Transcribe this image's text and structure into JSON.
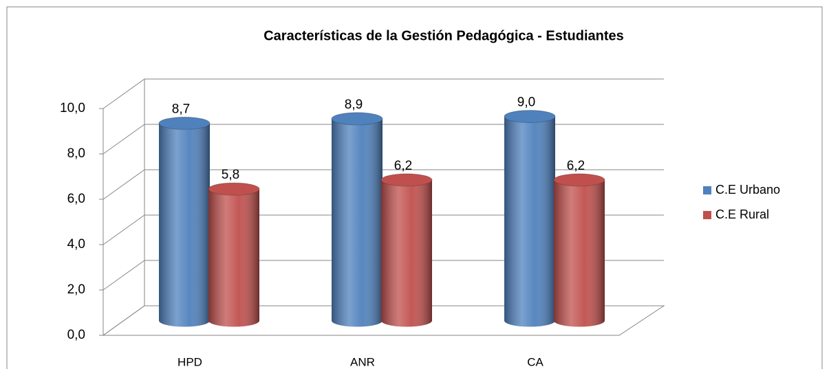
{
  "chart_data": {
    "type": "bar3d",
    "title": "Características de la Gestión Pedagógica - Estudiantes",
    "categories": [
      "HPD",
      "ANR",
      "CA"
    ],
    "series": [
      {
        "name": "C.E Urbano",
        "color": "#4f81bd",
        "values": [
          8.7,
          8.9,
          9.0
        ],
        "value_labels": [
          "8,7",
          "8,9",
          "9,0"
        ]
      },
      {
        "name": "C.E Rural",
        "color": "#c0504d",
        "values": [
          5.8,
          6.2,
          6.2
        ],
        "value_labels": [
          "5,8",
          "6,2",
          "6,2"
        ]
      }
    ],
    "ylim": [
      0,
      10
    ],
    "yticks": [
      {
        "value": 0,
        "label": "0,0"
      },
      {
        "value": 2,
        "label": "2,0"
      },
      {
        "value": 4,
        "label": "4,0"
      },
      {
        "value": 6,
        "label": "6,0"
      },
      {
        "value": 8,
        "label": "8,0"
      },
      {
        "value": 10,
        "label": "10,0"
      }
    ],
    "grid": true,
    "legend": "right"
  }
}
